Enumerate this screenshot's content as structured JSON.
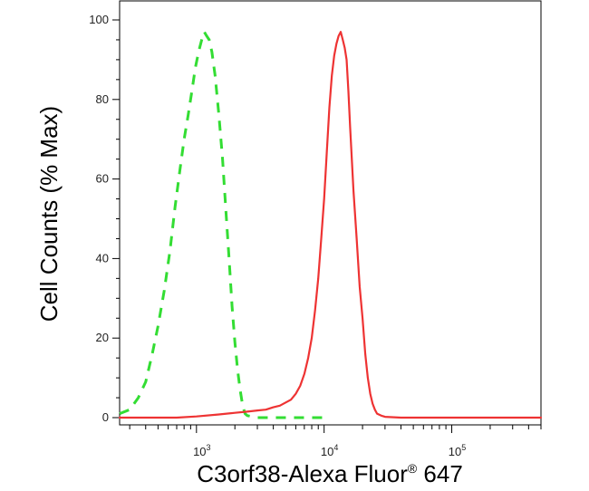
{
  "chart_data": {
    "type": "line",
    "title": "",
    "xlabel": "C3orf38-Alexa Fluor",
    "xlabel_superscript": "®",
    "xlabel_suffix": " 647",
    "ylabel": "Cell Counts (% Max)",
    "xscale": "log",
    "xlim": [
      250,
      500000
    ],
    "ylim": [
      0,
      100
    ],
    "y_ticks": [
      0,
      20,
      40,
      60,
      80,
      100
    ],
    "y_tick_labels": [
      "0",
      "20",
      "40",
      "60",
      "80",
      "100"
    ],
    "x_major_ticks": [
      1000,
      10000,
      100000
    ],
    "x_tick_labels": [
      {
        "base": "10",
        "exp": "3"
      },
      {
        "base": "10",
        "exp": "4"
      },
      {
        "base": "10",
        "exp": "5"
      }
    ],
    "grid": false,
    "legend": "none",
    "series": [
      {
        "style": "dashed",
        "color": "#33dd33",
        "x": [
          250,
          300,
          350,
          400,
          450,
          500,
          560,
          620,
          680,
          740,
          800,
          860,
          920,
          980,
          1040,
          1100,
          1150,
          1200,
          1260,
          1320,
          1400,
          1500,
          1600,
          1700,
          1800,
          1900,
          2000,
          2100,
          2200,
          2300,
          2400,
          2500,
          3000,
          5000,
          10000
        ],
        "y": [
          1,
          2,
          5,
          9,
          16,
          23,
          32,
          42,
          53,
          62,
          70,
          76,
          82,
          88,
          92,
          95,
          97,
          96,
          95,
          92,
          86,
          76,
          65,
          52,
          40,
          28,
          19,
          12,
          7,
          3,
          1,
          0.5,
          0,
          0,
          0
        ]
      },
      {
        "style": "solid",
        "color": "#ee3333",
        "x": [
          250,
          700,
          1000,
          1500,
          2000,
          2500,
          3000,
          3500,
          4000,
          4500,
          5000,
          5500,
          6000,
          6500,
          7000,
          7500,
          8000,
          8500,
          9000,
          9500,
          10000,
          10500,
          11000,
          11500,
          12000,
          12500,
          13000,
          13500,
          14000,
          14500,
          15000,
          15500,
          16000,
          17000,
          18000,
          19000,
          20000,
          21000,
          22000,
          23000,
          24000,
          25000,
          26000,
          28000,
          30000,
          40000,
          100000,
          500000
        ],
        "y": [
          0,
          0,
          0.3,
          0.8,
          1.2,
          1.5,
          1.8,
          2,
          2.6,
          3,
          3.8,
          4.5,
          6,
          8,
          11,
          15,
          20,
          27,
          35,
          45,
          55,
          67,
          78,
          86,
          91,
          94,
          96,
          97,
          95,
          93,
          90,
          82,
          73,
          57,
          45,
          33,
          25,
          16,
          10,
          6,
          3.5,
          2,
          1,
          0.5,
          0.2,
          0,
          0,
          0
        ]
      }
    ]
  }
}
